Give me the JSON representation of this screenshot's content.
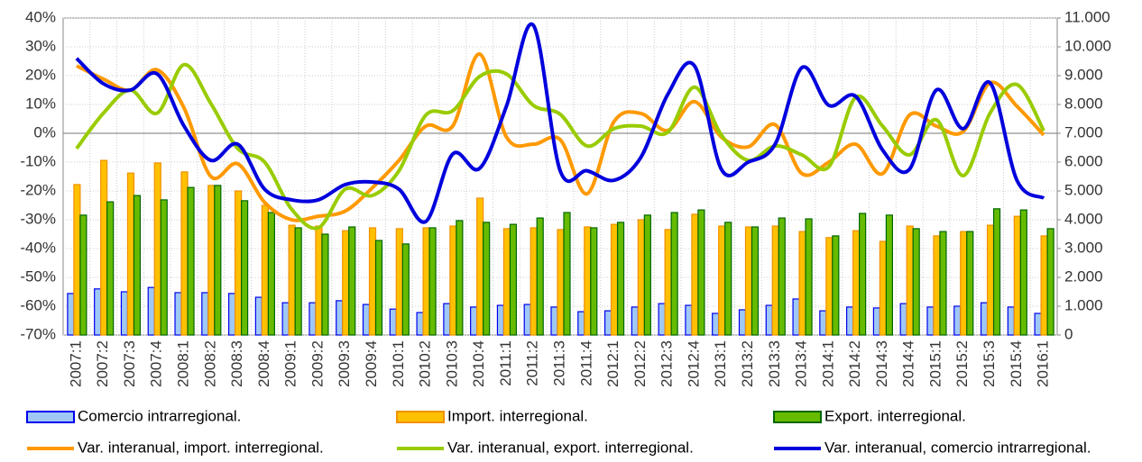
{
  "chart_data": {
    "type": "combo",
    "categories": [
      "2007:1",
      "2007:2",
      "2007:3",
      "2007:4",
      "2008:1",
      "2008:2",
      "2008:3",
      "2008:4",
      "2009:1",
      "2009:2",
      "2009:3",
      "2009:4",
      "2010:1",
      "2010:2",
      "2010:3",
      "2010:4",
      "2011:1",
      "2011:2",
      "2011:3",
      "2011:4",
      "2012:1",
      "2012:2",
      "2012:3",
      "2012:4",
      "2013:1",
      "2013:2",
      "2013:3",
      "2013:4",
      "2014:1",
      "2014:2",
      "2014:3",
      "2014:4",
      "2015:1",
      "2015:2",
      "2015:3",
      "2015:4",
      "2016:1"
    ],
    "ylim": [
      -70,
      40
    ],
    "yticks": [
      {
        "value": 40,
        "label": "40%"
      },
      {
        "value": 30,
        "label": "30%"
      },
      {
        "value": 20,
        "label": "20%"
      },
      {
        "value": 10,
        "label": "10%"
      },
      {
        "value": 0,
        "label": "0%"
      },
      {
        "value": -10,
        "label": "-10%"
      },
      {
        "value": -20,
        "label": "-20%"
      },
      {
        "value": -30,
        "label": "-30%"
      },
      {
        "value": -40,
        "label": "-40%"
      },
      {
        "value": -50,
        "label": "-50%"
      },
      {
        "value": -60,
        "label": "-60%"
      },
      {
        "value": -70,
        "label": "-70%"
      }
    ],
    "y2lim": [
      0,
      11000
    ],
    "y2ticks": [
      {
        "value": 11000,
        "label": "11.000"
      },
      {
        "value": 10000,
        "label": "10.000"
      },
      {
        "value": 9000,
        "label": "9.000"
      },
      {
        "value": 8000,
        "label": "8.000"
      },
      {
        "value": 7000,
        "label": "7.000"
      },
      {
        "value": 6000,
        "label": "6.000"
      },
      {
        "value": 5000,
        "label": "5.000"
      },
      {
        "value": 4000,
        "label": "4.000"
      },
      {
        "value": 3000,
        "label": "3.000"
      },
      {
        "value": 2000,
        "label": "2.000"
      },
      {
        "value": 1000,
        "label": "1.000"
      },
      0
    ],
    "grid": true,
    "series": [
      {
        "name": "Comercio intrarregional.",
        "type": "bar",
        "axis": "y2",
        "color": "#9fc8f5",
        "stroke": "#0000ee",
        "values": [
          1440,
          1600,
          1500,
          1650,
          1470,
          1470,
          1440,
          1310,
          1120,
          1120,
          1190,
          1060,
          900,
          780,
          1090,
          970,
          1030,
          1060,
          970,
          810,
          840,
          970,
          1090,
          1030,
          750,
          875,
          1030,
          1250,
          840,
          970,
          940,
          1090,
          970,
          1000,
          1120,
          970,
          750
        ]
      },
      {
        "name": "Import. interregional.",
        "type": "bar",
        "axis": "y2",
        "color": "#ffc000",
        "stroke": "#f09000",
        "values": [
          5220,
          6060,
          5620,
          5970,
          5660,
          5190,
          5000,
          4500,
          3810,
          3780,
          3620,
          3720,
          3690,
          3720,
          3780,
          4750,
          3690,
          3720,
          3660,
          3750,
          3840,
          4000,
          3660,
          4190,
          3780,
          3750,
          3780,
          3590,
          3380,
          3620,
          3250,
          3780,
          3440,
          3590,
          3810,
          4120,
          3440
        ]
      },
      {
        "name": "Export. interregional.",
        "type": "bar",
        "axis": "y2",
        "color": "#66bb00",
        "stroke": "#006600",
        "values": [
          4160,
          4620,
          4840,
          4690,
          5120,
          5190,
          4660,
          4250,
          3720,
          3500,
          3750,
          3280,
          3160,
          3720,
          3970,
          3910,
          3840,
          4060,
          4250,
          3720,
          3910,
          4160,
          4250,
          4340,
          3910,
          3750,
          4060,
          4030,
          3440,
          4220,
          4160,
          3690,
          3590,
          3590,
          4380,
          4340,
          3690
        ]
      },
      {
        "name": "Var. interanual, import. interregional.",
        "type": "line",
        "color": "#ff9900",
        "values": [
          23.4,
          18.8,
          15,
          22,
          8.8,
          -15,
          -10.6,
          -24,
          -30,
          -28.8,
          -27,
          -19,
          -9.4,
          2.5,
          2.5,
          27.5,
          -1.3,
          -3.8,
          -2.2,
          -21,
          4,
          6.9,
          1,
          11,
          -1.3,
          -4.7,
          3,
          -14,
          -10,
          -3.8,
          -14,
          6.3,
          2.5,
          0.6,
          17.5,
          9.4,
          -0.6
        ]
      },
      {
        "name": "Var. interanual, export. interregional.",
        "type": "line",
        "color": "#99cc00",
        "values": [
          -5.3,
          7,
          15,
          7,
          23.8,
          10.3,
          -5.3,
          -10,
          -26.3,
          -32.8,
          -19.4,
          -21.6,
          -13,
          6.3,
          7.8,
          19.7,
          20.6,
          9.7,
          6.6,
          -4.4,
          1.6,
          2.5,
          0.3,
          16,
          -0.6,
          -9.4,
          -4.4,
          -7.5,
          -11.6,
          12.5,
          2.5,
          -7.5,
          4.7,
          -14.7,
          7,
          16.9,
          0.9
        ]
      },
      {
        "name": "Var. interanual, comercio intrarregional.",
        "type": "line",
        "color": "#0000dd",
        "values": [
          26,
          17.2,
          15,
          20.6,
          2.5,
          -9.4,
          -3.8,
          -19.4,
          -23.1,
          -23.1,
          -17.8,
          -16.9,
          -19.4,
          -30.6,
          -7.2,
          -12.2,
          9.4,
          37.5,
          -13,
          -13,
          -16.3,
          -8.4,
          13.4,
          23.4,
          -12.5,
          -10,
          -3.8,
          22.8,
          9.7,
          12.8,
          -5.8,
          -12.5,
          15,
          1.6,
          17.5,
          -16.3,
          -22.5
        ]
      }
    ]
  }
}
